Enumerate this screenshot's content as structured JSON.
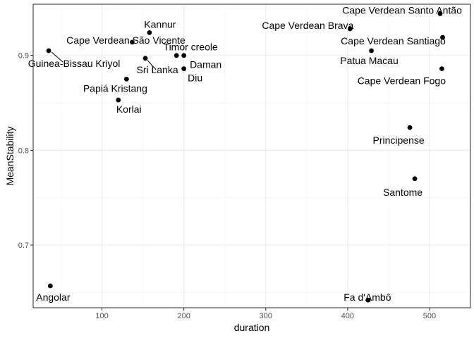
{
  "chart_data": {
    "type": "scatter",
    "title": "",
    "xlabel": "duration",
    "ylabel": "MeanStability",
    "xlim": [
      16,
      550
    ],
    "ylim": [
      0.634,
      0.954
    ],
    "x_ticks": [
      100,
      200,
      300,
      400,
      500
    ],
    "y_ticks": [
      0.7,
      0.8,
      0.9
    ],
    "x_tick_labels": [
      "100",
      "200",
      "300",
      "400",
      "500"
    ],
    "y_tick_labels": [
      "0.7",
      "0.8",
      "0.9"
    ],
    "grid": true,
    "legend": "none",
    "point_color": "#000000",
    "points": [
      {
        "label": "Angolar",
        "x": 37,
        "y": 0.657
      },
      {
        "label": "Guinea-Bissau Kriyol",
        "x": 35,
        "y": 0.905
      },
      {
        "label": "Cape Verdean São Vicente",
        "x": 137,
        "y": 0.914
      },
      {
        "label": "Kannur",
        "x": 158,
        "y": 0.924
      },
      {
        "label": "Korlai",
        "x": 120,
        "y": 0.853
      },
      {
        "label": "Papiá Kristang",
        "x": 130,
        "y": 0.875
      },
      {
        "label": "Sri Lanka",
        "x": 153,
        "y": 0.897
      },
      {
        "label": "Timor creole",
        "x": 191,
        "y": 0.9
      },
      {
        "label": "Daman",
        "x": 200,
        "y": 0.9
      },
      {
        "label": "Diu",
        "x": 200,
        "y": 0.886
      },
      {
        "label": "Cape Verdean Brava",
        "x": 403,
        "y": 0.928
      },
      {
        "label": "Patua Macau",
        "x": 429,
        "y": 0.905
      },
      {
        "label": "Cape Verdean Santo Antão",
        "x": 513,
        "y": 0.944
      },
      {
        "label": "Cape Verdean Santiago",
        "x": 516,
        "y": 0.919
      },
      {
        "label": "Cape Verdean Fogo",
        "x": 515,
        "y": 0.886
      },
      {
        "label": "Principense",
        "x": 476,
        "y": 0.824
      },
      {
        "label": "Santome",
        "x": 482,
        "y": 0.77
      },
      {
        "label": "Fa d'Ambô",
        "x": 425,
        "y": 0.642
      }
    ]
  }
}
